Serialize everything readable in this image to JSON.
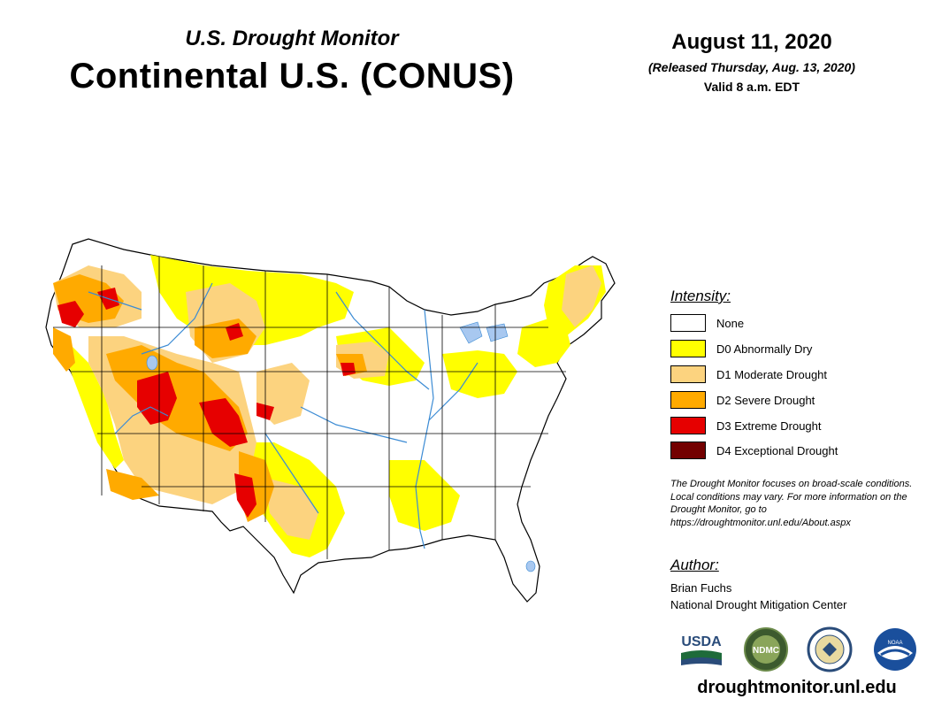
{
  "header": {
    "subtitle": "U.S. Drought Monitor",
    "title": "Continental U.S. (CONUS)",
    "date": "August 11, 2020",
    "released": "(Released Thursday, Aug. 13, 2020)",
    "valid": "Valid 8 a.m. EDT"
  },
  "legend": {
    "heading": "Intensity:",
    "items": [
      {
        "label": "None",
        "color": "#ffffff"
      },
      {
        "label": "D0 Abnormally Dry",
        "color": "#ffff00"
      },
      {
        "label": "D1 Moderate Drought",
        "color": "#fcd37f"
      },
      {
        "label": "D2 Severe Drought",
        "color": "#ffaa00"
      },
      {
        "label": "D3 Extreme Drought",
        "color": "#e60000"
      },
      {
        "label": "D4 Exceptional Drought",
        "color": "#730000"
      }
    ]
  },
  "note": "The Drought Monitor focuses on broad-scale conditions. Local conditions may vary. For more information on the Drought Monitor, go to https://droughtmonitor.unl.edu/About.aspx",
  "author": {
    "heading": "Author:",
    "name": "Brian Fuchs",
    "org": "National Drought Mitigation Center"
  },
  "logos": {
    "usda": "USDA",
    "ndmc": "NDMC",
    "doc": "department-of-commerce-seal",
    "noaa": "NOAA"
  },
  "website": "droughtmonitor.unl.edu",
  "colors": {
    "none": "#ffffff",
    "d0": "#ffff00",
    "d1": "#fcd37f",
    "d2": "#ffaa00",
    "d3": "#e60000",
    "d4": "#730000",
    "rivers": "#3b8bd4",
    "lakes": "#a8c8f0"
  }
}
